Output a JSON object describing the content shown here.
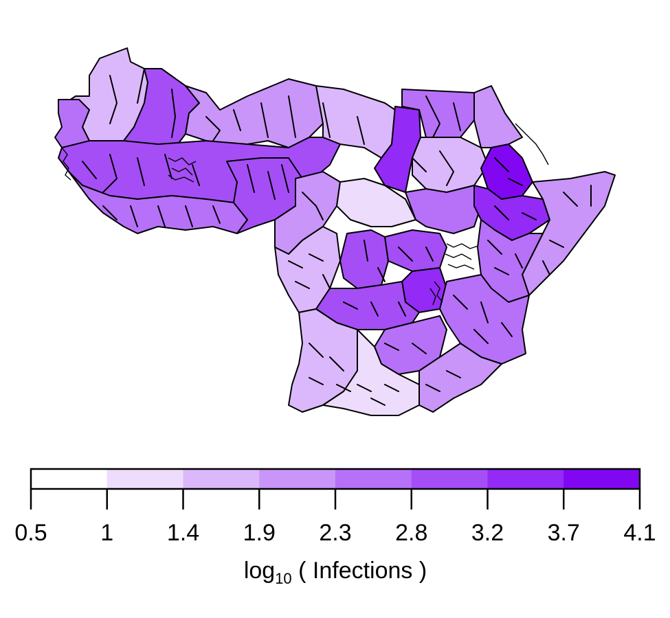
{
  "chart_data": {
    "type": "choropleth",
    "legend": {
      "title_prefix": "log",
      "title_subscript": "10",
      "title_suffix": " ( Infections )",
      "bins": [
        {
          "from": 0.5,
          "to": 1,
          "color": "#ffffff"
        },
        {
          "from": 1,
          "to": 1.4,
          "color": "#eddcfc"
        },
        {
          "from": 1.4,
          "to": 1.9,
          "color": "#dbb8fb"
        },
        {
          "from": 1.9,
          "to": 2.3,
          "color": "#c995f9"
        },
        {
          "from": 2.3,
          "to": 2.8,
          "color": "#b771f8"
        },
        {
          "from": 2.8,
          "to": 3.2,
          "color": "#a54ef6"
        },
        {
          "from": 3.2,
          "to": 3.7,
          "color": "#932af5"
        },
        {
          "from": 3.7,
          "to": 4.1,
          "color": "#8107f3"
        }
      ],
      "tick_labels": [
        "0.5",
        "1",
        "1.4",
        "1.9",
        "2.3",
        "2.8",
        "3.2",
        "3.7",
        "4.1"
      ]
    },
    "region_values": {
      "mauritania": 1.7,
      "mali_north": 3.0,
      "niger": 2.0,
      "chad": 1.6,
      "sudan_north": 2.4,
      "sudan_central": 1.8,
      "sudan_west": 3.5,
      "eritrea": 2.0,
      "ethiopia_north": 3.9,
      "ethiopia_central": 3.6,
      "somalia": 2.0,
      "kenya": 2.6,
      "south_sudan_west": 2.8,
      "car_east": 1.3,
      "drc_central": 3.2,
      "drc_northeast": 2.9,
      "drc_east": 3.3,
      "tanzania": 2.6,
      "angola": 1.6,
      "zambia_west": 2.5,
      "zambia_south": 1.2,
      "gabon_congo": 1.7,
      "nigeria_north": 3.1,
      "cameroon": 2.2,
      "west_coast": 2.7,
      "senegal_gambia": 2.4,
      "sahel_band": 2.9,
      "mozambique_north": 2.3
    }
  }
}
